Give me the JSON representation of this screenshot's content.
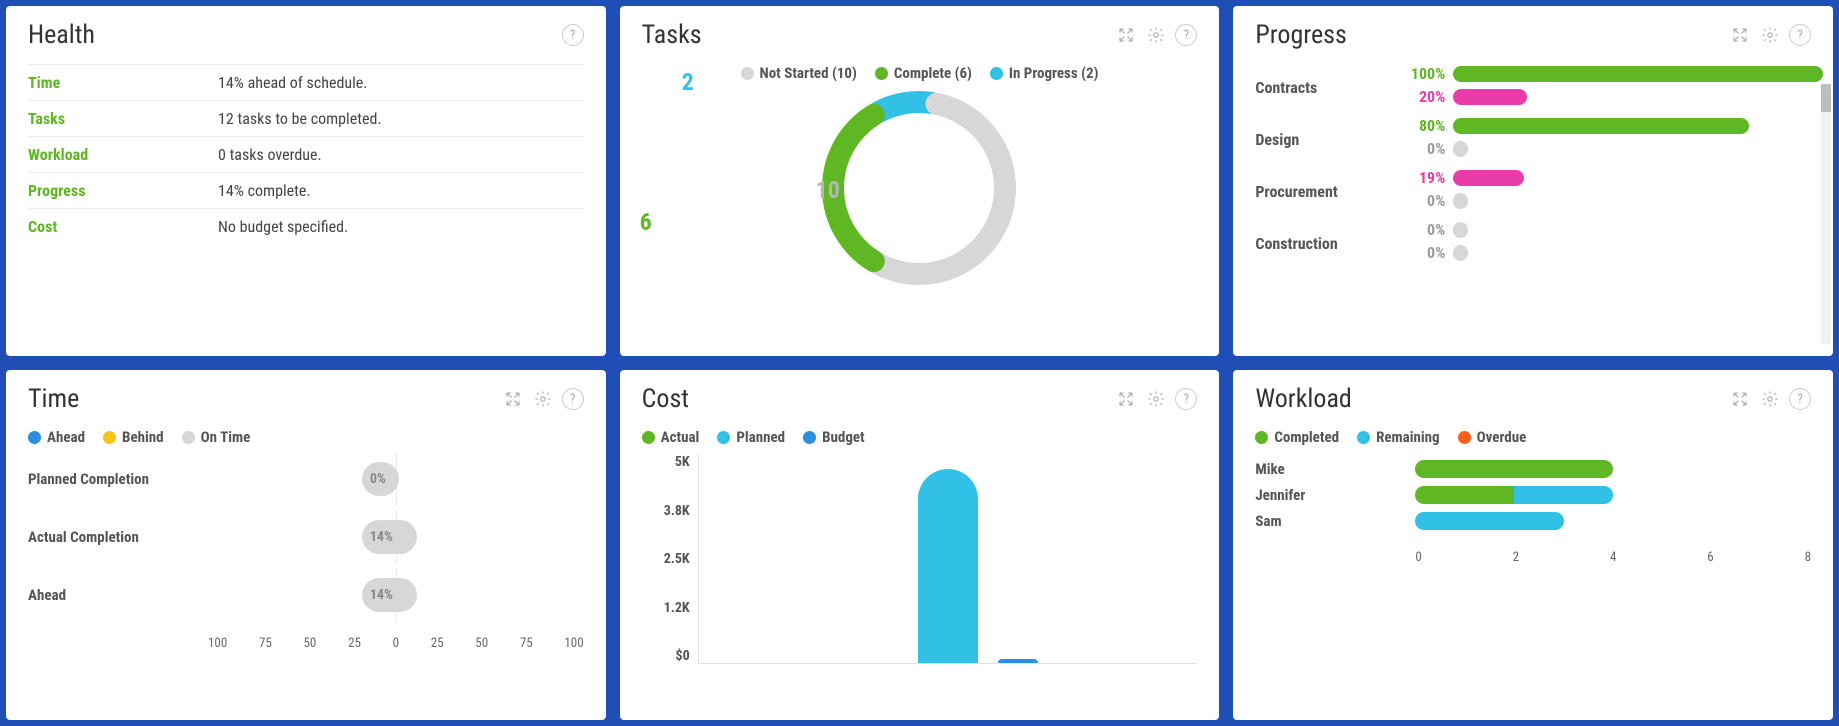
{
  "colors": {
    "page_bg": "#1f4fb4",
    "card_bg": "#ffffff",
    "title": "#333333",
    "text": "#555555",
    "divider": "#ececec",
    "grey": "#d7d7d7",
    "green": "#5fb723",
    "cyan": "#31c1e7",
    "blue": "#2d8fe0",
    "orange": "#ff5e1a",
    "yellow": "#f5c518",
    "pink": "#e83da9"
  },
  "health": {
    "title": "Health",
    "rows": [
      {
        "label": "Time",
        "value": "14% ahead of schedule."
      },
      {
        "label": "Tasks",
        "value": "12 tasks to be completed."
      },
      {
        "label": "Workload",
        "value": "0 tasks overdue."
      },
      {
        "label": "Progress",
        "value": "14% complete."
      },
      {
        "label": "Cost",
        "value": "No budget specified."
      }
    ]
  },
  "tasks": {
    "title": "Tasks",
    "chart": {
      "type": "donut",
      "inner_radius": 72,
      "outer_radius": 100,
      "stroke_width": 22,
      "series": [
        {
          "label": "Not Started",
          "value": 10,
          "color": "#d7d7d7",
          "annot_x": 174,
          "annot_y": 88,
          "annot_color": "#b7b7b7"
        },
        {
          "label": "Complete",
          "value": 6,
          "color": "#5fb723",
          "annot_x": -2,
          "annot_y": 120,
          "annot_color": "#5fb723"
        },
        {
          "label": "In Progress",
          "value": 2,
          "color": "#31c1e7",
          "annot_x": 40,
          "annot_y": -20,
          "annot_color": "#31c1e7"
        }
      ],
      "legend_labels": [
        "Not Started (10)",
        "Complete (6)",
        "In Progress (2)"
      ]
    }
  },
  "progress": {
    "title": "Progress",
    "rows": [
      {
        "name": "Contracts",
        "bars": [
          {
            "pct": 100,
            "color": "#5fb723",
            "label_color": "#5fb723"
          },
          {
            "pct": 20,
            "color": "#e83da9",
            "label_color": "#e83da9"
          }
        ]
      },
      {
        "name": "Design",
        "bars": [
          {
            "pct": 80,
            "color": "#5fb723",
            "label_color": "#5fb723"
          },
          {
            "pct": 0,
            "color": "#d7d7d7",
            "label_color": "#9c9c9c"
          }
        ]
      },
      {
        "name": "Procurement",
        "bars": [
          {
            "pct": 19,
            "color": "#e83da9",
            "label_color": "#e83da9"
          },
          {
            "pct": 0,
            "color": "#d7d7d7",
            "label_color": "#9c9c9c"
          }
        ]
      },
      {
        "name": "Construction",
        "bars": [
          {
            "pct": 0,
            "color": "#d7d7d7",
            "label_color": "#9c9c9c"
          },
          {
            "pct": 0,
            "color": "#d7d7d7",
            "label_color": "#9c9c9c"
          }
        ]
      }
    ]
  },
  "time": {
    "title": "Time",
    "legend": [
      {
        "label": "Ahead",
        "color": "#2d8fe0"
      },
      {
        "label": "Behind",
        "color": "#f5c518"
      },
      {
        "label": "On Time",
        "color": "#d7d7d7"
      }
    ],
    "rows": [
      {
        "name": "Planned Completion",
        "pct": 0,
        "color": "#d7d7d7"
      },
      {
        "name": "Actual Completion",
        "pct": 14,
        "color": "#d7d7d7"
      },
      {
        "name": "Ahead",
        "pct": 14,
        "color": "#d7d7d7"
      }
    ],
    "axis": {
      "ticks": [
        100,
        75,
        50,
        25,
        0,
        25,
        50,
        75,
        100
      ]
    }
  },
  "cost": {
    "title": "Cost",
    "legend": [
      {
        "label": "Actual",
        "color": "#5fb723"
      },
      {
        "label": "Planned",
        "color": "#31c1e7"
      },
      {
        "label": "Budget",
        "color": "#2d8fe0"
      }
    ],
    "y_ticks": [
      "5K",
      "3.8K",
      "2.5K",
      "1.2K",
      "$0"
    ],
    "y_max": 5000,
    "bars": [
      {
        "x_pct": 18,
        "value": 0,
        "color": "#5fb723"
      },
      {
        "x_pct": 44,
        "value": 4650,
        "color": "#31c1e7"
      },
      {
        "x_pct": 60,
        "value": 100,
        "color": "#2d8fe0"
      }
    ]
  },
  "workload": {
    "title": "Workload",
    "legend": [
      {
        "label": "Completed",
        "color": "#5fb723"
      },
      {
        "label": "Remaining",
        "color": "#31c1e7"
      },
      {
        "label": "Overdue",
        "color": "#ff5e1a"
      }
    ],
    "x_max": 8,
    "rows": [
      {
        "name": "Mike",
        "segments": [
          {
            "value": 4,
            "color": "#5fb723"
          }
        ]
      },
      {
        "name": "Jennifer",
        "segments": [
          {
            "value": 2,
            "color": "#5fb723"
          },
          {
            "value": 2,
            "color": "#31c1e7"
          }
        ]
      },
      {
        "name": "Sam",
        "segments": [
          {
            "value": 3,
            "color": "#31c1e7"
          }
        ]
      }
    ],
    "axis": {
      "ticks": [
        0,
        2,
        4,
        6,
        8
      ]
    }
  }
}
